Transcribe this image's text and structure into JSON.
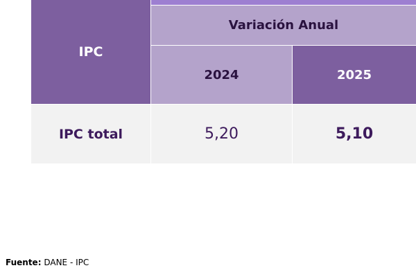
{
  "table": {
    "corner": "IPC",
    "group": "Variación Anual",
    "columns": [
      "2024",
      "2025"
    ],
    "rows": [
      [
        "IPC total",
        "5,20",
        "5,10"
      ]
    ]
  },
  "footer": {
    "label": "Fuente:",
    "text": "DANE - IPC"
  }
}
